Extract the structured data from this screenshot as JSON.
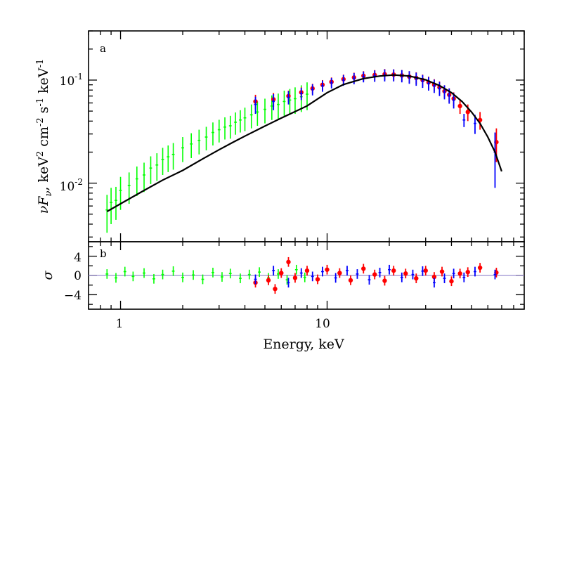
{
  "colors": {
    "xmm": "#00ff00",
    "nustar_fpma": "#ff0000",
    "nustar_fpmb": "#0000ff",
    "model": "#000000",
    "zero_line": "#9b8fd0"
  },
  "chart_data": [
    {
      "type": "scatter",
      "panel": "a",
      "panel_label": "a",
      "xscale": "log",
      "yscale": "log",
      "xlim": [
        0.7,
        90
      ],
      "ylim": [
        0.0027,
        0.3
      ],
      "xticks": [
        {
          "value": 1,
          "label": "1"
        },
        {
          "value": 10,
          "label": "10"
        }
      ],
      "yticks": [
        {
          "value": 0.01,
          "label": "10-2"
        },
        {
          "value": 0.1,
          "label": "10-1"
        }
      ],
      "ylabel": "νFν, keV2 cm-2 s-1 keV-1",
      "series": [
        {
          "color": "#00ff00",
          "x": [
            0.86,
            0.9,
            0.95,
            1.0,
            1.1,
            1.2,
            1.3,
            1.4,
            1.5,
            1.6,
            1.7,
            1.8,
            2.0,
            2.2,
            2.4,
            2.6,
            2.8,
            3.0,
            3.2,
            3.4,
            3.6,
            3.8,
            4.0,
            4.3,
            4.6,
            5.0,
            5.4,
            5.8,
            6.2,
            6.6,
            7.0,
            7.5,
            8.0
          ],
          "y": [
            0.0055,
            0.0065,
            0.0068,
            0.0085,
            0.0095,
            0.011,
            0.012,
            0.014,
            0.015,
            0.017,
            0.018,
            0.019,
            0.022,
            0.024,
            0.026,
            0.028,
            0.031,
            0.033,
            0.035,
            0.036,
            0.039,
            0.041,
            0.043,
            0.046,
            0.049,
            0.052,
            0.056,
            0.058,
            0.062,
            0.064,
            0.066,
            0.069,
            0.073
          ],
          "yerr": [
            0.0022,
            0.0025,
            0.0024,
            0.003,
            0.0032,
            0.0035,
            0.0038,
            0.0042,
            0.0045,
            0.005,
            0.0052,
            0.0055,
            0.006,
            0.0065,
            0.007,
            0.0072,
            0.0078,
            0.0082,
            0.0085,
            0.009,
            0.0095,
            0.01,
            0.011,
            0.012,
            0.013,
            0.014,
            0.015,
            0.016,
            0.017,
            0.018,
            0.019,
            0.02,
            0.022
          ]
        },
        {
          "color": "#ff0000",
          "x": [
            4.5,
            5.5,
            6.5,
            7.5,
            8.5,
            9.5,
            10.5,
            12,
            13.5,
            15,
            17,
            19,
            21,
            23,
            25,
            27,
            29,
            31,
            33,
            35,
            37,
            39,
            41,
            44,
            48,
            55,
            66
          ],
          "y": [
            0.062,
            0.065,
            0.07,
            0.076,
            0.083,
            0.09,
            0.096,
            0.102,
            0.106,
            0.11,
            0.112,
            0.114,
            0.113,
            0.111,
            0.108,
            0.105,
            0.1,
            0.095,
            0.09,
            0.085,
            0.078,
            0.072,
            0.066,
            0.056,
            0.049,
            0.041,
            0.025
          ],
          "yerr": [
            0.01,
            0.01,
            0.009,
            0.009,
            0.009,
            0.01,
            0.01,
            0.011,
            0.012,
            0.012,
            0.013,
            0.014,
            0.014,
            0.014,
            0.014,
            0.014,
            0.013,
            0.013,
            0.012,
            0.012,
            0.011,
            0.011,
            0.01,
            0.009,
            0.009,
            0.008,
            0.009
          ]
        },
        {
          "color": "#0000ff",
          "x": [
            4.5,
            5.5,
            6.5,
            7.5,
            8.5,
            9.5,
            10.5,
            12,
            13.5,
            15,
            17,
            19,
            21,
            23,
            25,
            27,
            29,
            31,
            33,
            35,
            37,
            39,
            41,
            46,
            52,
            65
          ],
          "y": [
            0.058,
            0.062,
            0.068,
            0.074,
            0.081,
            0.088,
            0.094,
            0.1,
            0.104,
            0.108,
            0.11,
            0.112,
            0.112,
            0.11,
            0.107,
            0.103,
            0.098,
            0.093,
            0.088,
            0.083,
            0.077,
            0.071,
            0.064,
            0.041,
            0.038,
            0.02
          ],
          "yerr": [
            0.011,
            0.011,
            0.01,
            0.01,
            0.01,
            0.011,
            0.011,
            0.012,
            0.013,
            0.013,
            0.014,
            0.015,
            0.015,
            0.015,
            0.015,
            0.015,
            0.014,
            0.014,
            0.013,
            0.013,
            0.012,
            0.012,
            0.011,
            0.006,
            0.008,
            0.011
          ]
        }
      ],
      "model": {
        "color": "#000000",
        "x": [
          0.86,
          1.0,
          1.3,
          1.6,
          2.0,
          2.5,
          3.0,
          3.5,
          4.0,
          5.0,
          6.0,
          7.0,
          8.0,
          10,
          12,
          15,
          18,
          21,
          25,
          30,
          35,
          40,
          45,
          50,
          55,
          60,
          65,
          70
        ],
        "y": [
          0.0053,
          0.0063,
          0.0085,
          0.0107,
          0.0133,
          0.0172,
          0.0211,
          0.0249,
          0.0286,
          0.0358,
          0.0428,
          0.0495,
          0.0562,
          0.0755,
          0.0905,
          0.1035,
          0.1095,
          0.112,
          0.1095,
          0.1005,
          0.0885,
          0.0755,
          0.062,
          0.049,
          0.038,
          0.028,
          0.02,
          0.013
        ]
      }
    },
    {
      "type": "scatter",
      "panel": "b",
      "panel_label": "b",
      "xscale": "log",
      "xlim": [
        0.7,
        90
      ],
      "ylim": [
        -7,
        7
      ],
      "xticks": [
        {
          "value": 1,
          "label": "1"
        },
        {
          "value": 10,
          "label": "10"
        }
      ],
      "yticks": [
        {
          "value": 4,
          "label": "4"
        },
        {
          "value": 0,
          "label": "0"
        },
        {
          "value": -4,
          "label": "−4"
        }
      ],
      "xlabel": "Energy, keV",
      "ylabel": "σ",
      "reference_line": 0,
      "series": [
        {
          "color": "#00ff00",
          "x": [
            0.86,
            0.95,
            1.05,
            1.15,
            1.3,
            1.45,
            1.6,
            1.8,
            2.0,
            2.25,
            2.5,
            2.8,
            3.1,
            3.4,
            3.8,
            4.2,
            4.7,
            5.2,
            5.8,
            6.4,
            7.1,
            7.8
          ],
          "y": [
            0.3,
            -0.5,
            0.8,
            -0.2,
            0.5,
            -0.7,
            0.2,
            0.9,
            -0.4,
            0.1,
            -0.8,
            0.6,
            -0.3,
            0.4,
            -0.6,
            0.2,
            0.7,
            -0.5,
            0.3,
            -0.9,
            1.2,
            -0.4
          ],
          "yerr": [
            1,
            1,
            1,
            1,
            1,
            1,
            1,
            1,
            1,
            1,
            1,
            1,
            1,
            1,
            1,
            1,
            1,
            1,
            1,
            1,
            1,
            1
          ]
        },
        {
          "color": "#ff0000",
          "x": [
            4.5,
            5.2,
            5.6,
            6.0,
            6.5,
            7.0,
            8.0,
            9.0,
            10,
            11.5,
            13,
            15,
            17,
            19,
            21,
            24,
            27,
            30,
            33,
            36,
            40,
            44,
            48,
            55,
            66
          ],
          "y": [
            -1.5,
            -1.0,
            -2.8,
            0.5,
            2.8,
            -0.5,
            1.0,
            -0.8,
            1.2,
            0.5,
            -1.0,
            1.4,
            0.2,
            -1.1,
            1.0,
            0.4,
            -0.6,
            1.0,
            -0.3,
            0.8,
            -1.2,
            0.4,
            0.7,
            1.6,
            0.6
          ],
          "yerr": [
            1,
            1,
            1,
            1,
            1,
            1,
            1,
            1,
            1,
            1,
            1,
            1,
            1,
            1,
            1,
            1,
            1,
            1,
            1,
            1,
            1,
            1,
            1,
            1,
            1
          ]
        },
        {
          "color": "#0000ff",
          "x": [
            4.5,
            5.5,
            6.5,
            7.5,
            8.5,
            9.5,
            11,
            12.5,
            14,
            16,
            18,
            20,
            23,
            26,
            29,
            33,
            37,
            41,
            46,
            52,
            65
          ],
          "y": [
            -0.8,
            1.0,
            -1.5,
            0.5,
            -0.2,
            0.8,
            -0.5,
            1.0,
            0.3,
            -0.9,
            0.6,
            1.2,
            -0.4,
            0.2,
            0.9,
            -1.5,
            -0.6,
            0.4,
            -0.4,
            0.8,
            0.2
          ],
          "yerr": [
            1,
            1,
            1,
            1,
            1,
            1,
            1,
            1,
            1,
            1,
            1,
            1,
            1,
            1,
            1,
            1,
            1,
            1,
            1,
            1,
            1
          ]
        }
      ]
    }
  ]
}
